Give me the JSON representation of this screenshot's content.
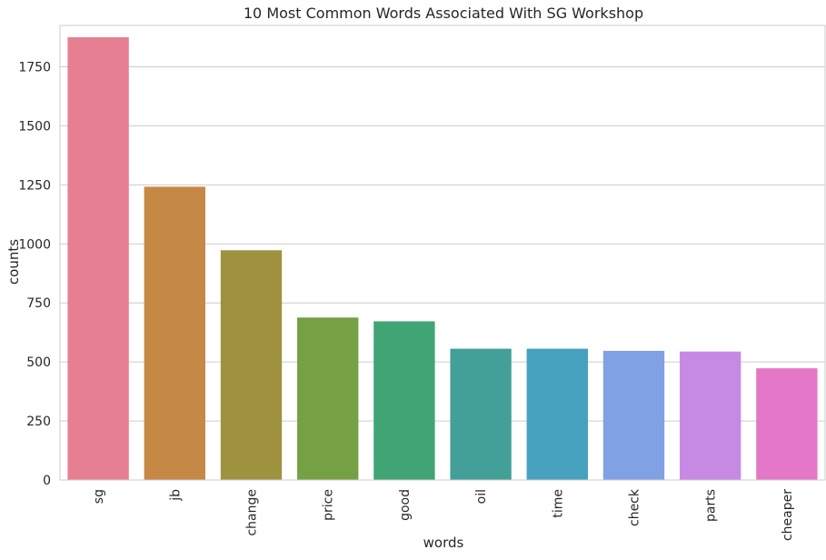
{
  "chart_data": {
    "type": "bar",
    "title": "10 Most Common Words Associated With SG Workshop",
    "xlabel": "words",
    "ylabel": "counts",
    "categories": [
      "sg",
      "jb",
      "change",
      "price",
      "good",
      "oil",
      "time",
      "check",
      "parts",
      "cheaper"
    ],
    "values": [
      1875,
      1242,
      973,
      688,
      672,
      556,
      556,
      547,
      544,
      473
    ],
    "colors": [
      "#e77f92",
      "#c68845",
      "#9f923f",
      "#76a044",
      "#40a474",
      "#43a098",
      "#46a1be",
      "#81a1e5",
      "#c68ae5",
      "#e477c8"
    ],
    "yticks": [
      0,
      250,
      500,
      750,
      1000,
      1250,
      1500,
      1750
    ],
    "ylim": [
      0,
      1925
    ],
    "grid": "horizontal",
    "legend": "none"
  }
}
